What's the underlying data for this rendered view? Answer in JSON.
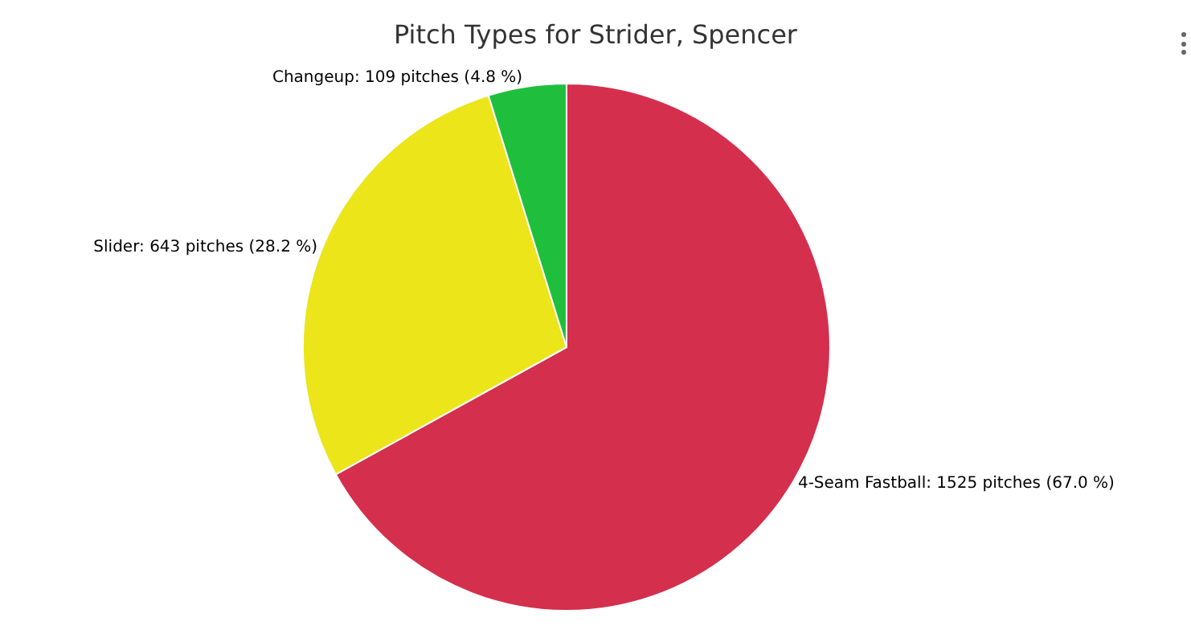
{
  "chart_data": {
    "type": "pie",
    "title": "Pitch Types for Strider, Spencer",
    "categories": [
      "4-Seam Fastball",
      "Slider",
      "Changeup"
    ],
    "values": [
      1525,
      643,
      109
    ],
    "colors": [
      "#d42f4d",
      "#ebe51a",
      "#1fbf3d"
    ],
    "value_labels": [
      "1525 pitches (67.0 %)",
      "643 pitches (28.2 %)",
      "109 pitches (4.8 %)"
    ],
    "legend": false
  }
}
